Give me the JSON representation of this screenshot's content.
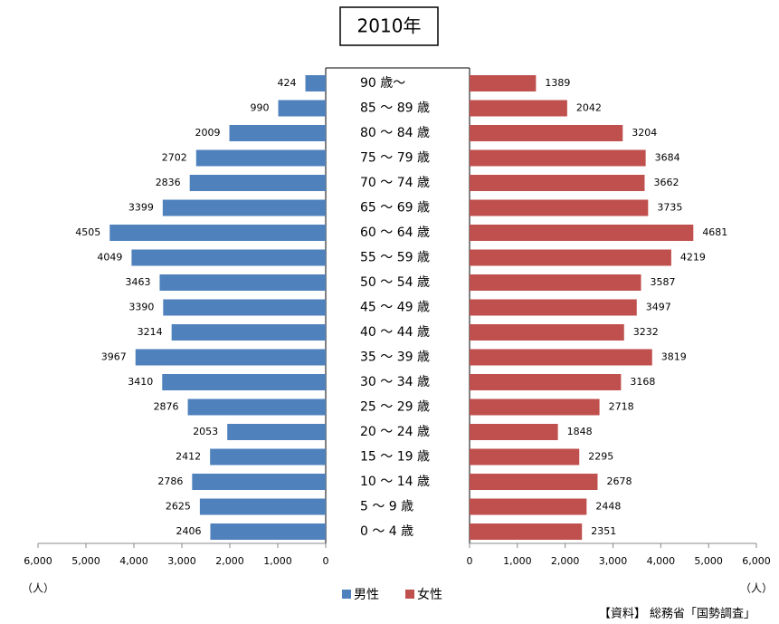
{
  "chart_data": {
    "type": "pyramid",
    "title": "2010年",
    "categories": [
      "90 歳～",
      "85 ～ 89 歳",
      "80 ～ 84 歳",
      "75 ～ 79 歳",
      "70 ～ 74 歳",
      "65 ～ 69 歳",
      "60 ～ 64 歳",
      "55 ～ 59 歳",
      "50 ～ 54 歳",
      "45 ～ 49 歳",
      "40 ～ 44 歳",
      "35 ～ 39 歳",
      "30 ～ 34 歳",
      "25 ～ 29 歳",
      "20 ～ 24 歳",
      "15 ～ 19 歳",
      "10 ～ 14 歳",
      "5 ～ 9 歳",
      "0 ～ 4 歳"
    ],
    "series": [
      {
        "name": "男性",
        "color": "#4f81bd",
        "values": [
          424,
          990,
          2009,
          2702,
          2836,
          3399,
          4505,
          4049,
          3463,
          3390,
          3214,
          3967,
          3410,
          2876,
          2053,
          2412,
          2786,
          2625,
          2406
        ]
      },
      {
        "name": "女性",
        "color": "#c0504d",
        "values": [
          1389,
          2042,
          3204,
          3684,
          3662,
          3735,
          4681,
          4219,
          3587,
          3497,
          3232,
          3819,
          3168,
          2718,
          1848,
          2295,
          2678,
          2448,
          2351
        ]
      }
    ],
    "xlim": [
      0,
      6000
    ],
    "xticks": [
      0,
      {
        "value": 1000,
        "label": "1,000"
      },
      {
        "value": 2000,
        "label": "2,000"
      },
      {
        "value": 3000,
        "label": "3,000"
      },
      {
        "value": 4000,
        "label": "4,000"
      },
      {
        "value": 5000,
        "label": "5,000"
      },
      {
        "value": 6000,
        "label": "6,000"
      }
    ],
    "x_unit": "（人）",
    "source": "【資料】 総務省「国勢調査」"
  }
}
